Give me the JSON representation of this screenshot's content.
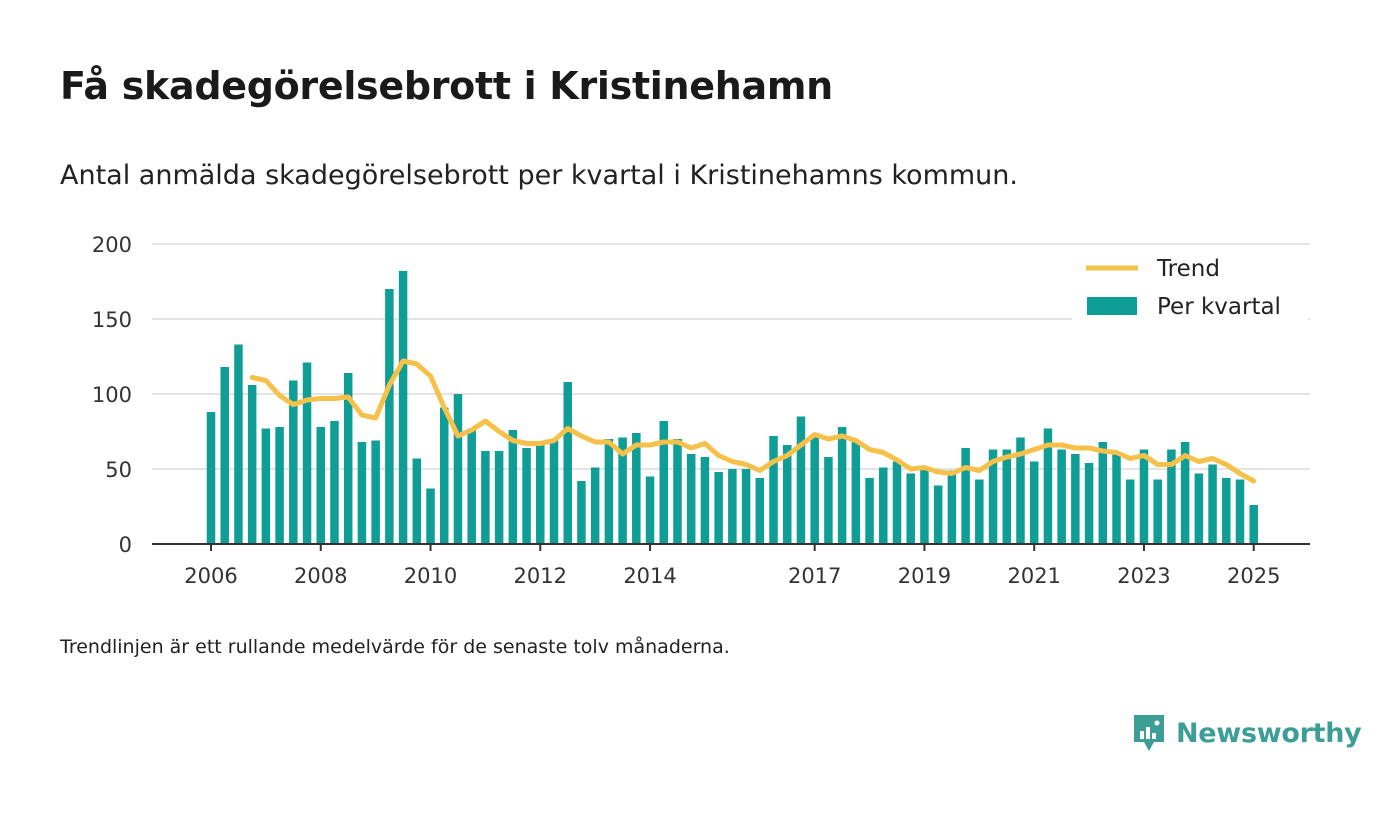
{
  "title": "Få skadegörelsebrott i Kristinehamn",
  "subtitle": "Antal anmälda skadegörelsebrott per kvartal i Kristinehamns kommun.",
  "footnote": "Trendlinjen är ett rullande medelvärde för de senaste tolv månaderna.",
  "brand": "Newsworthy",
  "colors": {
    "bar": "#0f9e96",
    "trend": "#f6c14b",
    "grid": "#dcdcdc",
    "axis": "#333333",
    "brand": "#3d9e97"
  },
  "chart_data": {
    "type": "bar",
    "x_start": "2006-Q1",
    "ylim": [
      0,
      200
    ],
    "yticks": [
      0,
      50,
      100,
      150,
      200
    ],
    "xticks": [
      "2006",
      "2008",
      "2010",
      "2012",
      "2014",
      "2017",
      "2019",
      "2021",
      "2023",
      "2025"
    ],
    "grid": true,
    "legend": "top-right",
    "series": [
      {
        "name": "Per kvartal",
        "type": "bar",
        "values": [
          88,
          118,
          133,
          106,
          77,
          78,
          109,
          121,
          78,
          82,
          114,
          68,
          69,
          170,
          182,
          57,
          37,
          91,
          100,
          77,
          62,
          62,
          76,
          64,
          68,
          70,
          108,
          42,
          51,
          70,
          71,
          74,
          45,
          82,
          70,
          60,
          58,
          48,
          50,
          50,
          44,
          72,
          66,
          85,
          72,
          58,
          78,
          68,
          44,
          51,
          55,
          47,
          50,
          39,
          49,
          64,
          43,
          63,
          63,
          71,
          55,
          77,
          63,
          60,
          54,
          68,
          60,
          43,
          63,
          43,
          63,
          68,
          47,
          53,
          44,
          43,
          26
        ]
      },
      {
        "name": "Trend",
        "type": "line",
        "values": [
          null,
          null,
          null,
          111,
          109,
          99,
          93,
          96,
          97,
          97,
          98,
          86,
          84,
          106,
          122,
          120,
          112,
          91,
          72,
          76,
          82,
          75,
          69,
          67,
          67,
          69,
          77,
          72,
          68,
          68,
          60,
          66,
          66,
          68,
          68,
          64,
          67,
          59,
          55,
          53,
          49,
          55,
          59,
          66,
          73,
          70,
          72,
          69,
          63,
          61,
          56,
          50,
          51,
          48,
          47,
          51,
          49,
          55,
          58,
          60,
          63,
          66,
          66,
          64,
          64,
          62,
          61,
          57,
          59,
          53,
          53,
          59,
          55,
          57,
          53,
          47,
          42
        ]
      }
    ]
  }
}
